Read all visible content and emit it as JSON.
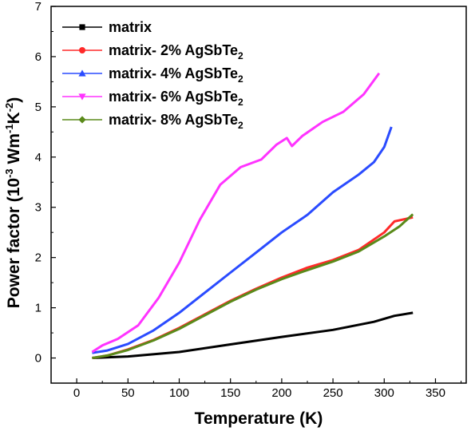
{
  "chart_data": {
    "type": "line",
    "xlabel": "Temperature (K)",
    "ylabel": "Power factor (10",
    "ylabel_sup1": "-3",
    "ylabel_mid": " Wm",
    "ylabel_sup2": "-1",
    "ylabel_k": "K",
    "ylabel_sup3": "-2",
    "ylabel_end": ")",
    "xlim": [
      -25,
      380
    ],
    "ylim": [
      -0.5,
      7
    ],
    "xticks": [
      0,
      50,
      100,
      150,
      200,
      250,
      300,
      350
    ],
    "yticks": [
      0,
      1,
      2,
      3,
      4,
      5,
      6,
      7
    ],
    "grid": false,
    "legend_position": "top-left",
    "series": [
      {
        "name": "matrix",
        "name_sub": "",
        "color": "#000000",
        "marker": "square",
        "x": [
          15,
          50,
          100,
          150,
          200,
          250,
          290,
          310,
          328
        ],
        "y": [
          0.0,
          0.03,
          0.12,
          0.27,
          0.42,
          0.56,
          0.72,
          0.84,
          0.9
        ]
      },
      {
        "name": "matrix- 2% AgSbTe",
        "name_sub": "2",
        "color": "#ff2a2a",
        "marker": "circle",
        "x": [
          15,
          30,
          50,
          75,
          100,
          125,
          150,
          175,
          200,
          225,
          250,
          275,
          300,
          310,
          328
        ],
        "y": [
          0.0,
          0.05,
          0.17,
          0.36,
          0.6,
          0.87,
          1.14,
          1.38,
          1.6,
          1.8,
          1.95,
          2.15,
          2.5,
          2.72,
          2.8
        ]
      },
      {
        "name": "matrix- 4% AgSbTe",
        "name_sub": "2",
        "color": "#2a4bff",
        "marker": "triangle-up",
        "x": [
          15,
          30,
          50,
          75,
          100,
          125,
          150,
          175,
          200,
          225,
          250,
          275,
          290,
          300,
          307
        ],
        "y": [
          0.1,
          0.15,
          0.28,
          0.55,
          0.9,
          1.3,
          1.7,
          2.1,
          2.5,
          2.85,
          3.3,
          3.65,
          3.9,
          4.2,
          4.6
        ]
      },
      {
        "name": "matrix- 6% AgSbTe",
        "name_sub": "2",
        "color": "#ff33ff",
        "marker": "triangle-down",
        "x": [
          15,
          25,
          40,
          60,
          80,
          100,
          120,
          140,
          160,
          180,
          195,
          205,
          210,
          220,
          240,
          260,
          280,
          295
        ],
        "y": [
          0.12,
          0.25,
          0.38,
          0.65,
          1.2,
          1.9,
          2.75,
          3.45,
          3.8,
          3.95,
          4.25,
          4.38,
          4.22,
          4.42,
          4.7,
          4.9,
          5.25,
          5.67
        ]
      },
      {
        "name": "matrix- 8% AgSbTe",
        "name_sub": "2",
        "color": "#5a8a1a",
        "marker": "diamond",
        "x": [
          15,
          30,
          50,
          75,
          100,
          125,
          150,
          175,
          200,
          225,
          250,
          275,
          300,
          315,
          328
        ],
        "y": [
          0.0,
          0.05,
          0.16,
          0.35,
          0.58,
          0.85,
          1.12,
          1.36,
          1.57,
          1.75,
          1.92,
          2.12,
          2.42,
          2.62,
          2.86
        ]
      }
    ]
  }
}
